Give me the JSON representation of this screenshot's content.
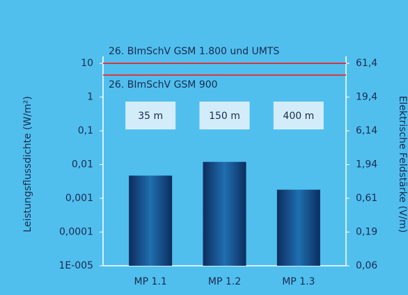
{
  "chart_data": {
    "type": "bar",
    "categories": [
      "MP 1.1",
      "MP 1.2",
      "MP 1.3"
    ],
    "values": [
      0.0047,
      0.012,
      0.0018
    ],
    "distance_labels": [
      "35 m",
      "150 m",
      "400 m"
    ],
    "ylabel": "Leistungsflussdichte (W/m²)",
    "y2label": "Elektrische Feldstärke (V/m)",
    "log_scale": true,
    "ylim": [
      1e-05,
      10
    ],
    "yticks": [
      10,
      1,
      {
        "value": 0.1,
        "label": "0,1"
      },
      {
        "value": 0.01,
        "label": "0,01"
      },
      {
        "value": 0.001,
        "label": "0,001"
      },
      {
        "value": 0.0001,
        "label": "0,0001"
      },
      {
        "value": 1e-05,
        "label": "1E-005"
      }
    ],
    "y2lim": [
      0.0614,
      61.4
    ],
    "y2ticks": [
      {
        "value": 61.4,
        "label": "61,4"
      },
      {
        "value": 19.4,
        "label": "19,4"
      },
      {
        "value": 6.14,
        "label": "6,14"
      },
      {
        "value": 1.94,
        "label": "1,94"
      },
      {
        "value": 0.614,
        "label": "0,61"
      },
      {
        "value": 0.194,
        "label": "0,19"
      },
      {
        "value": 0.0614,
        "label": "0,06"
      }
    ],
    "limits": [
      {
        "label": "26. BImSchV GSM 1.800 und UMTS",
        "value": 10,
        "color": "#d9363e"
      },
      {
        "label": "26. BImSchV GSM 900",
        "value": 4.5,
        "color": "#d9363e"
      }
    ],
    "background": "#50bfee"
  }
}
